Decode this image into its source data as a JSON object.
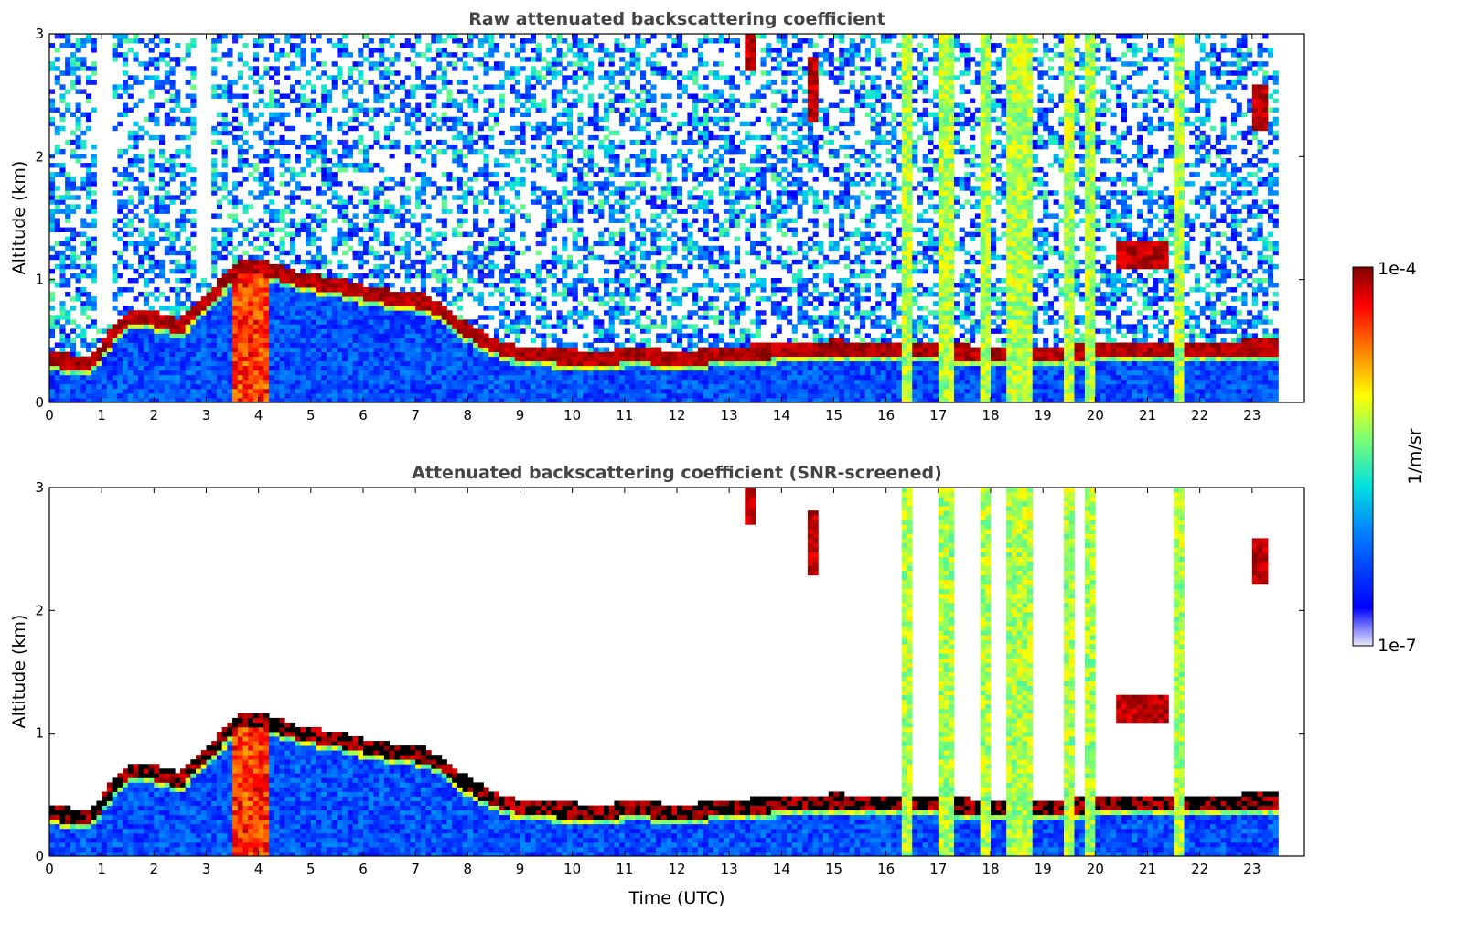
{
  "chart_data": [
    {
      "type": "heatmap",
      "title": "Raw attenuated backscattering coefficient",
      "xlabel": "",
      "ylabel": "Altitude (km)",
      "xlim": [
        0,
        24
      ],
      "ylim": [
        0,
        3
      ],
      "xticks": [
        0,
        1,
        2,
        3,
        4,
        5,
        6,
        7,
        8,
        9,
        10,
        11,
        12,
        13,
        14,
        15,
        16,
        17,
        18,
        19,
        20,
        21,
        22,
        23
      ],
      "yticks": [
        0,
        1,
        2,
        3
      ],
      "grid": false,
      "screened": false,
      "colormap": "jet",
      "layers": {
        "boundary_layer_top_km": [
          [
            0,
            0.35
          ],
          [
            0.8,
            0.32
          ],
          [
            1.2,
            0.55
          ],
          [
            1.6,
            0.7
          ],
          [
            2,
            0.68
          ],
          [
            2.5,
            0.62
          ],
          [
            3,
            0.82
          ],
          [
            3.5,
            1.05
          ],
          [
            3.7,
            1.12
          ],
          [
            4.2,
            1.08
          ],
          [
            4.8,
            1.0
          ],
          [
            5.5,
            0.95
          ],
          [
            6.2,
            0.88
          ],
          [
            6.6,
            0.85
          ],
          [
            7.2,
            0.82
          ],
          [
            7.6,
            0.72
          ],
          [
            8,
            0.58
          ],
          [
            8.6,
            0.45
          ],
          [
            9,
            0.4
          ],
          [
            9.6,
            0.38
          ],
          [
            10.2,
            0.37
          ],
          [
            10.7,
            0.36
          ],
          [
            11.2,
            0.4
          ],
          [
            12,
            0.35
          ],
          [
            13,
            0.4
          ],
          [
            14,
            0.42
          ],
          [
            15,
            0.45
          ],
          [
            16,
            0.43
          ],
          [
            17,
            0.42
          ],
          [
            18,
            0.4
          ],
          [
            19,
            0.4
          ],
          [
            20,
            0.42
          ],
          [
            21,
            0.42
          ],
          [
            22,
            0.43
          ],
          [
            23,
            0.45
          ],
          [
            23.4,
            0.45
          ]
        ]
      }
    },
    {
      "type": "heatmap",
      "title": "Attenuated backscattering coefficient (SNR-screened)",
      "xlabel": "Time (UTC)",
      "ylabel": "Altitude (km)",
      "xlim": [
        0,
        24
      ],
      "ylim": [
        0,
        3
      ],
      "xticks": [
        0,
        1,
        2,
        3,
        4,
        5,
        6,
        7,
        8,
        9,
        10,
        11,
        12,
        13,
        14,
        15,
        16,
        17,
        18,
        19,
        20,
        21,
        22,
        23
      ],
      "yticks": [
        0,
        1,
        2,
        3
      ],
      "grid": false,
      "screened": true,
      "colormap": "jet"
    }
  ],
  "colorbar": {
    "max_label": "1e-4",
    "min_label": "1e-7",
    "label": "1/m/sr",
    "scale": "log",
    "range": [
      1e-07,
      0.0001
    ]
  },
  "colors": {
    "background": "#ffffff",
    "clear_sky": "#0033ff",
    "cloud": "#8b0000",
    "rain": "#9ff05a"
  }
}
